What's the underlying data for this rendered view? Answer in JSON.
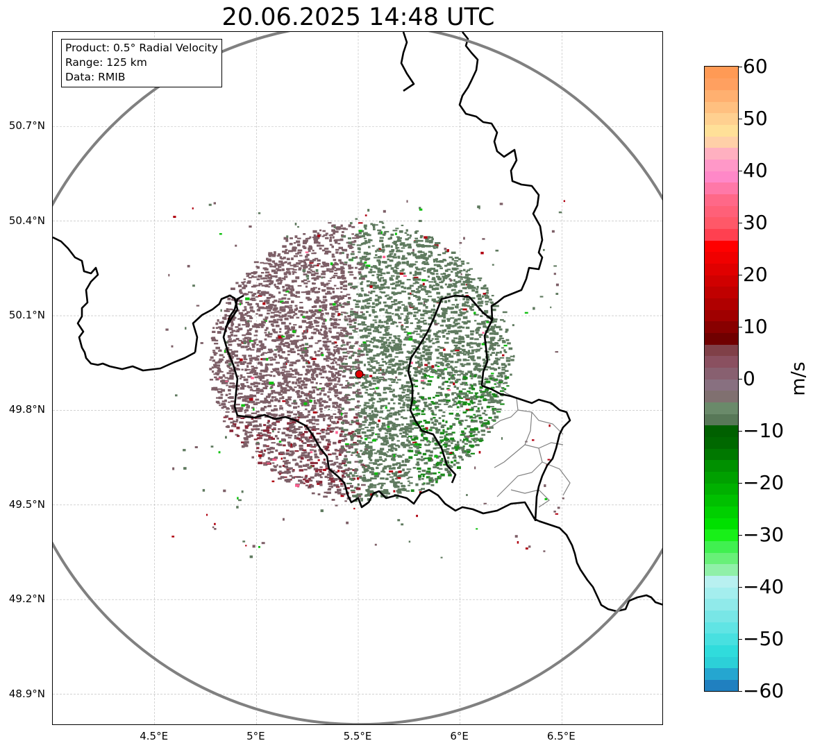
{
  "title": "20.06.2025 14:48 UTC",
  "info": {
    "product": "Product: 0.5° Radial Velocity",
    "range": "Range: 125 km",
    "source": "Data: RMIB"
  },
  "axes": {
    "y_ticks": [
      "50.7°N",
      "50.4°N",
      "50.1°N",
      "49.8°N",
      "49.5°N",
      "49.2°N",
      "48.9°N"
    ],
    "x_ticks": [
      "4.5°E",
      "5°E",
      "5.5°E",
      "6°E",
      "6.5°E"
    ]
  },
  "map": {
    "lon_range": [
      4.0,
      7.0
    ],
    "lat_range": [
      48.8,
      51.0
    ],
    "radar_site": {
      "lon": 5.505,
      "lat": 49.915
    },
    "range_ring_color": "#808080",
    "border_color": "#000000",
    "subregion_color": "#808080",
    "grid": true
  },
  "colorbar": {
    "min": -60,
    "max": 60,
    "unit": "m/s",
    "tick_labels": [
      "60",
      "50",
      "40",
      "30",
      "20",
      "10",
      "0",
      "−10",
      "−20",
      "−30",
      "−40",
      "−50",
      "−60"
    ],
    "colors": [
      "#2080c0",
      "#25a6d0",
      "#2cd0d8",
      "#30dcdc",
      "#48e0e0",
      "#60e4e4",
      "#78e6e6",
      "#90eaea",
      "#a4eeee",
      "#b8f0f0",
      "#90f0a8",
      "#68f078",
      "#40f050",
      "#18f018",
      "#00e000",
      "#00d000",
      "#00c000",
      "#00b000",
      "#00a000",
      "#009000",
      "#007800",
      "#006800",
      "#006000",
      "#587858",
      "#6a8a6a",
      "#807070",
      "#887080",
      "#886070",
      "#8a5060",
      "#804048",
      "#700000",
      "#880000",
      "#a00000",
      "#b00000",
      "#c00000",
      "#d00000",
      "#e00000",
      "#f00000",
      "#ff0000",
      "#ff4050",
      "#ff5868",
      "#ff6078",
      "#ff6888",
      "#ff78a8",
      "#ff88c8",
      "#ff98c8",
      "#ffb0c0",
      "#ffd0a8",
      "#ffe098",
      "#ffd090",
      "#ffc080",
      "#ffb070",
      "#ffa060",
      "#ff9a55"
    ]
  },
  "echo_colors": {
    "outbound": "#7d5f67",
    "inbound": "#5f7a5f",
    "accent_red": "#b00010",
    "accent_green": "#10c010",
    "accent_pink": "#ff6090"
  }
}
